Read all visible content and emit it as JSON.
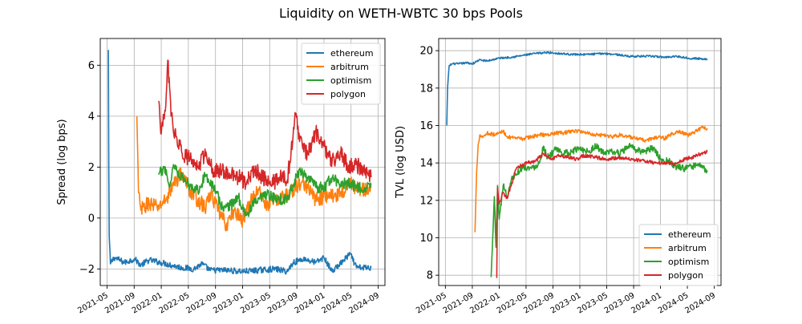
{
  "figure": {
    "title": "Liquidity on WETH-WBTC 30 bps Pools"
  },
  "colors": {
    "ethereum": "#1f77b4",
    "arbitrum": "#ff7f0e",
    "optimism": "#2ca02c",
    "polygon": "#d62728",
    "grid": "#b0b0b0"
  },
  "chart_data": [
    {
      "type": "line",
      "title": "",
      "xlabel": "",
      "ylabel": "Spread (log bps)",
      "xlim": [
        2021.25,
        2024.75
      ],
      "ylim": [
        -2.65,
        7.05
      ],
      "x_ticks": [
        2021.333,
        2021.667,
        2022.0,
        2022.333,
        2022.667,
        2023.0,
        2023.333,
        2023.667,
        2024.0,
        2024.333,
        2024.667
      ],
      "x_tick_labels": [
        "2021-05",
        "2021-09",
        "2022-01",
        "2022-05",
        "2022-09",
        "2023-01",
        "2023-05",
        "2023-09",
        "2024-01",
        "2024-05",
        "2024-09"
      ],
      "y_ticks": [
        -2,
        0,
        2,
        4,
        6
      ],
      "y_tick_labels": [
        "−2",
        "0",
        "2",
        "4",
        "6"
      ],
      "grid": true,
      "legend": "upper-right",
      "series": [
        {
          "name": "ethereum",
          "noise": 0.12,
          "points": [
            [
              2021.35,
              6.6
            ],
            [
              2021.355,
              2.0
            ],
            [
              2021.36,
              -0.7
            ],
            [
              2021.375,
              -1.8
            ],
            [
              2021.42,
              -1.55
            ],
            [
              2021.55,
              -1.75
            ],
            [
              2021.67,
              -1.6
            ],
            [
              2021.75,
              -1.85
            ],
            [
              2021.85,
              -1.65
            ],
            [
              2022.0,
              -1.75
            ],
            [
              2022.25,
              -1.95
            ],
            [
              2022.4,
              -2.0
            ],
            [
              2022.5,
              -1.8
            ],
            [
              2022.6,
              -2.05
            ],
            [
              2022.8,
              -2.05
            ],
            [
              2023.0,
              -2.1
            ],
            [
              2023.4,
              -2.0
            ],
            [
              2023.55,
              -2.1
            ],
            [
              2023.62,
              -1.75
            ],
            [
              2023.75,
              -1.6
            ],
            [
              2023.9,
              -1.75
            ],
            [
              2024.0,
              -1.55
            ],
            [
              2024.1,
              -2.1
            ],
            [
              2024.25,
              -1.65
            ],
            [
              2024.32,
              -1.4
            ],
            [
              2024.4,
              -1.95
            ],
            [
              2024.58,
              -1.95
            ]
          ]
        },
        {
          "name": "arbitrum",
          "noise": 0.3,
          "points": [
            [
              2021.7,
              4.0
            ],
            [
              2021.72,
              1.0
            ],
            [
              2021.75,
              0.3
            ],
            [
              2021.85,
              0.6
            ],
            [
              2021.95,
              0.4
            ],
            [
              2022.05,
              0.7
            ],
            [
              2022.15,
              1.3
            ],
            [
              2022.25,
              1.8
            ],
            [
              2022.35,
              1.1
            ],
            [
              2022.45,
              0.7
            ],
            [
              2022.55,
              0.4
            ],
            [
              2022.6,
              1.0
            ],
            [
              2022.7,
              0.3
            ],
            [
              2022.8,
              -0.3
            ],
            [
              2022.9,
              0.3
            ],
            [
              2023.0,
              -0.1
            ],
            [
              2023.1,
              0.7
            ],
            [
              2023.2,
              1.1
            ],
            [
              2023.3,
              0.5
            ],
            [
              2023.4,
              0.7
            ],
            [
              2023.55,
              0.9
            ],
            [
              2023.65,
              1.2
            ],
            [
              2023.75,
              1.4
            ],
            [
              2023.9,
              0.7
            ],
            [
              2024.05,
              0.9
            ],
            [
              2024.1,
              0.9
            ],
            [
              2024.2,
              0.9
            ],
            [
              2024.3,
              1.4
            ],
            [
              2024.45,
              1.1
            ],
            [
              2024.58,
              1.2
            ]
          ]
        },
        {
          "name": "optimism",
          "noise": 0.22,
          "points": [
            [
              2021.97,
              1.7
            ],
            [
              2022.05,
              2.0
            ],
            [
              2022.1,
              1.2
            ],
            [
              2022.15,
              2.1
            ],
            [
              2022.25,
              1.6
            ],
            [
              2022.35,
              1.3
            ],
            [
              2022.45,
              1.1
            ],
            [
              2022.55,
              1.7
            ],
            [
              2022.65,
              1.2
            ],
            [
              2022.75,
              0.4
            ],
            [
              2022.85,
              0.5
            ],
            [
              2022.95,
              0.8
            ],
            [
              2023.05,
              0.1
            ],
            [
              2023.15,
              0.6
            ],
            [
              2023.3,
              0.9
            ],
            [
              2023.45,
              0.7
            ],
            [
              2023.55,
              0.8
            ],
            [
              2023.6,
              1.1
            ],
            [
              2023.7,
              1.9
            ],
            [
              2023.8,
              1.6
            ],
            [
              2023.9,
              1.2
            ],
            [
              2024.0,
              1.2
            ],
            [
              2024.1,
              1.6
            ],
            [
              2024.2,
              1.3
            ],
            [
              2024.3,
              1.4
            ],
            [
              2024.4,
              1.2
            ],
            [
              2024.5,
              1.2
            ],
            [
              2024.58,
              1.3
            ]
          ]
        },
        {
          "name": "polygon",
          "noise": 0.32,
          "points": [
            [
              2021.97,
              4.6
            ],
            [
              2022.0,
              3.3
            ],
            [
              2022.05,
              4.2
            ],
            [
              2022.08,
              6.2
            ],
            [
              2022.12,
              4.0
            ],
            [
              2022.18,
              3.2
            ],
            [
              2022.25,
              2.6
            ],
            [
              2022.35,
              2.3
            ],
            [
              2022.45,
              2.0
            ],
            [
              2022.55,
              2.6
            ],
            [
              2022.65,
              1.8
            ],
            [
              2022.75,
              1.9
            ],
            [
              2022.85,
              1.7
            ],
            [
              2022.95,
              1.6
            ],
            [
              2023.05,
              1.4
            ],
            [
              2023.15,
              1.9
            ],
            [
              2023.25,
              1.6
            ],
            [
              2023.35,
              1.3
            ],
            [
              2023.45,
              1.6
            ],
            [
              2023.55,
              1.5
            ],
            [
              2023.62,
              3.2
            ],
            [
              2023.65,
              4.1
            ],
            [
              2023.7,
              3.0
            ],
            [
              2023.8,
              2.5
            ],
            [
              2023.9,
              3.4
            ],
            [
              2024.0,
              2.8
            ],
            [
              2024.1,
              2.2
            ],
            [
              2024.2,
              2.6
            ],
            [
              2024.3,
              2.0
            ],
            [
              2024.4,
              2.1
            ],
            [
              2024.5,
              1.8
            ],
            [
              2024.58,
              1.6
            ]
          ]
        }
      ]
    },
    {
      "type": "line",
      "title": "",
      "xlabel": "",
      "ylabel": "TVL (log USD)",
      "xlim": [
        2021.25,
        2024.75
      ],
      "ylim": [
        7.45,
        20.65
      ],
      "x_ticks": [
        2021.333,
        2021.667,
        2022.0,
        2022.333,
        2022.667,
        2023.0,
        2023.333,
        2023.667,
        2024.0,
        2024.333,
        2024.667
      ],
      "x_tick_labels": [
        "2021-05",
        "2021-09",
        "2022-01",
        "2022-05",
        "2022-09",
        "2023-01",
        "2023-05",
        "2023-09",
        "2024-01",
        "2024-05",
        "2024-09"
      ],
      "y_ticks": [
        8,
        10,
        12,
        14,
        16,
        18,
        20
      ],
      "y_tick_labels": [
        "8",
        "10",
        "12",
        "14",
        "16",
        "18",
        "20"
      ],
      "grid": true,
      "legend": "lower-right",
      "series": [
        {
          "name": "ethereum",
          "noise": 0.05,
          "points": [
            [
              2021.35,
              16.0
            ],
            [
              2021.36,
              18.0
            ],
            [
              2021.38,
              19.2
            ],
            [
              2021.42,
              19.3
            ],
            [
              2021.5,
              19.3
            ],
            [
              2021.6,
              19.35
            ],
            [
              2021.67,
              19.3
            ],
            [
              2021.75,
              19.5
            ],
            [
              2021.85,
              19.45
            ],
            [
              2022.0,
              19.6
            ],
            [
              2022.15,
              19.65
            ],
            [
              2022.3,
              19.75
            ],
            [
              2022.45,
              19.85
            ],
            [
              2022.6,
              19.9
            ],
            [
              2022.75,
              19.85
            ],
            [
              2022.9,
              19.8
            ],
            [
              2023.1,
              19.8
            ],
            [
              2023.3,
              19.85
            ],
            [
              2023.45,
              19.8
            ],
            [
              2023.6,
              19.7
            ],
            [
              2023.75,
              19.7
            ],
            [
              2023.9,
              19.7
            ],
            [
              2024.05,
              19.65
            ],
            [
              2024.2,
              19.7
            ],
            [
              2024.35,
              19.6
            ],
            [
              2024.58,
              19.55
            ]
          ]
        },
        {
          "name": "arbitrum",
          "noise": 0.1,
          "points": [
            [
              2021.7,
              10.3
            ],
            [
              2021.72,
              13.5
            ],
            [
              2021.74,
              15.0
            ],
            [
              2021.76,
              15.5
            ],
            [
              2021.8,
              15.4
            ],
            [
              2021.85,
              15.6
            ],
            [
              2021.95,
              15.5
            ],
            [
              2022.0,
              15.6
            ],
            [
              2022.05,
              15.7
            ],
            [
              2022.1,
              15.4
            ],
            [
              2022.2,
              15.3
            ],
            [
              2022.3,
              15.3
            ],
            [
              2022.4,
              15.4
            ],
            [
              2022.5,
              15.5
            ],
            [
              2022.6,
              15.5
            ],
            [
              2022.7,
              15.6
            ],
            [
              2022.8,
              15.6
            ],
            [
              2022.9,
              15.7
            ],
            [
              2023.0,
              15.7
            ],
            [
              2023.1,
              15.6
            ],
            [
              2023.2,
              15.5
            ],
            [
              2023.3,
              15.5
            ],
            [
              2023.4,
              15.4
            ],
            [
              2023.5,
              15.5
            ],
            [
              2023.6,
              15.4
            ],
            [
              2023.7,
              15.3
            ],
            [
              2023.8,
              15.2
            ],
            [
              2023.9,
              15.3
            ],
            [
              2024.0,
              15.4
            ],
            [
              2024.05,
              15.3
            ],
            [
              2024.2,
              15.7
            ],
            [
              2024.35,
              15.5
            ],
            [
              2024.45,
              15.7
            ],
            [
              2024.52,
              15.9
            ],
            [
              2024.58,
              15.85
            ]
          ]
        },
        {
          "name": "optimism",
          "noise": 0.18,
          "points": [
            [
              2021.9,
              7.9
            ],
            [
              2021.92,
              10.0
            ],
            [
              2021.94,
              12.2
            ],
            [
              2021.96,
              9.5
            ],
            [
              2021.98,
              12.8
            ],
            [
              2022.0,
              11.0
            ],
            [
              2022.05,
              12.8
            ],
            [
              2022.1,
              12.2
            ],
            [
              2022.15,
              13.1
            ],
            [
              2022.2,
              13.4
            ],
            [
              2022.3,
              13.8
            ],
            [
              2022.4,
              13.7
            ],
            [
              2022.5,
              14.0
            ],
            [
              2022.55,
              14.9
            ],
            [
              2022.6,
              14.3
            ],
            [
              2022.7,
              14.7
            ],
            [
              2022.8,
              14.5
            ],
            [
              2022.9,
              14.6
            ],
            [
              2023.0,
              14.8
            ],
            [
              2023.1,
              14.6
            ],
            [
              2023.2,
              14.9
            ],
            [
              2023.3,
              14.5
            ],
            [
              2023.4,
              14.6
            ],
            [
              2023.5,
              14.5
            ],
            [
              2023.6,
              14.9
            ],
            [
              2023.7,
              14.7
            ],
            [
              2023.8,
              14.6
            ],
            [
              2023.9,
              14.8
            ],
            [
              2024.0,
              14.2
            ],
            [
              2024.1,
              14.1
            ],
            [
              2024.2,
              13.8
            ],
            [
              2024.3,
              13.7
            ],
            [
              2024.4,
              13.8
            ],
            [
              2024.5,
              13.9
            ],
            [
              2024.58,
              13.5
            ]
          ]
        },
        {
          "name": "polygon",
          "noise": 0.1,
          "points": [
            [
              2021.97,
              7.85
            ],
            [
              2021.98,
              12.7
            ],
            [
              2022.0,
              11.8
            ],
            [
              2022.05,
              12.4
            ],
            [
              2022.1,
              12.1
            ],
            [
              2022.15,
              12.8
            ],
            [
              2022.2,
              13.6
            ],
            [
              2022.25,
              13.8
            ],
            [
              2022.35,
              14.0
            ],
            [
              2022.45,
              14.1
            ],
            [
              2022.55,
              14.5
            ],
            [
              2022.65,
              14.2
            ],
            [
              2022.75,
              14.4
            ],
            [
              2022.85,
              14.3
            ],
            [
              2022.95,
              14.2
            ],
            [
              2023.05,
              14.4
            ],
            [
              2023.2,
              14.3
            ],
            [
              2023.35,
              14.2
            ],
            [
              2023.5,
              14.3
            ],
            [
              2023.65,
              14.2
            ],
            [
              2023.8,
              14.1
            ],
            [
              2023.95,
              14.0
            ],
            [
              2024.1,
              14.0
            ],
            [
              2024.2,
              13.95
            ],
            [
              2024.3,
              14.2
            ],
            [
              2024.4,
              14.3
            ],
            [
              2024.5,
              14.5
            ],
            [
              2024.58,
              14.6
            ]
          ]
        }
      ]
    }
  ]
}
